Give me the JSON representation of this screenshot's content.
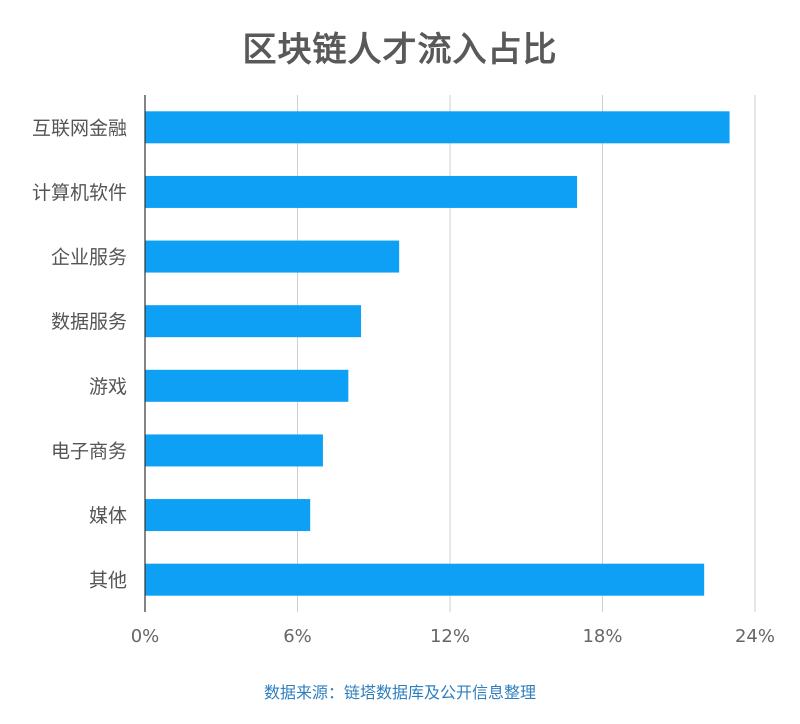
{
  "chart_data": {
    "type": "bar",
    "orientation": "horizontal",
    "title": "区块链人才流入占比",
    "categories": [
      "互联网金融",
      "计算机软件",
      "企业服务",
      "数据服务",
      "游戏",
      "电子商务",
      "媒体",
      "其他"
    ],
    "values": [
      23.0,
      17.0,
      10.0,
      8.5,
      8.0,
      7.0,
      6.5,
      22.0
    ],
    "unit": "%",
    "xlim": [
      0,
      24
    ],
    "xticks": [
      "0%",
      "6%",
      "12%",
      "18%",
      "24%"
    ],
    "grid": true,
    "bar_color": "#0da0f5",
    "source": "数据来源：链塔数据库及公开信息整理"
  }
}
